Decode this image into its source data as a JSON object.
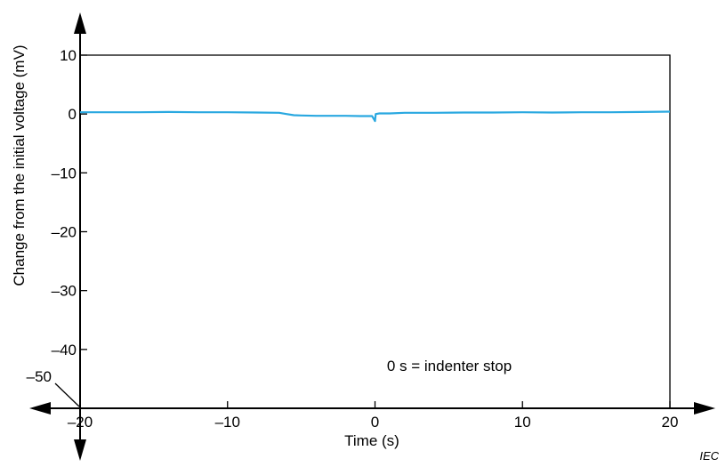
{
  "chart_data": {
    "type": "line",
    "xlabel": "Time  (s)",
    "ylabel": "Change from the initial voltage  (mV)",
    "xlim": [
      -20,
      20
    ],
    "ylim": [
      -50,
      10
    ],
    "x_ticks": [
      {
        "value": -20,
        "label": "–20"
      },
      {
        "value": -10,
        "label": "–10"
      },
      {
        "value": 0,
        "label": "0"
      },
      {
        "value": 10,
        "label": "10"
      },
      {
        "value": 20,
        "label": "20"
      }
    ],
    "y_ticks": [
      {
        "value": 10,
        "label": "10"
      },
      {
        "value": 0,
        "label": "0"
      },
      {
        "value": -10,
        "label": "–10"
      },
      {
        "value": -20,
        "label": "–20"
      },
      {
        "value": -30,
        "label": "–30"
      },
      {
        "value": -40,
        "label": "–40"
      }
    ],
    "y_origin_label": "–50",
    "annotation": "0 s = indenter stop",
    "line_color": "#29a8e0",
    "series": [
      {
        "x": [
          -20,
          -18,
          -16,
          -14,
          -12,
          -10,
          -8,
          -6.5,
          -6,
          -5.5,
          -5,
          -4,
          -3,
          -2,
          -1,
          -0.2,
          0,
          0.05,
          0.3,
          1,
          2,
          4,
          6,
          8,
          10,
          12,
          14,
          16,
          18,
          20
        ],
        "y": [
          0.3,
          0.3,
          0.3,
          0.35,
          0.3,
          0.3,
          0.25,
          0.2,
          0.0,
          -0.2,
          -0.25,
          -0.3,
          -0.3,
          -0.3,
          -0.35,
          -0.35,
          -1.2,
          0.0,
          0.1,
          0.1,
          0.2,
          0.2,
          0.25,
          0.25,
          0.3,
          0.25,
          0.3,
          0.3,
          0.35,
          0.4
        ]
      }
    ],
    "footer_mark": "IEC"
  }
}
